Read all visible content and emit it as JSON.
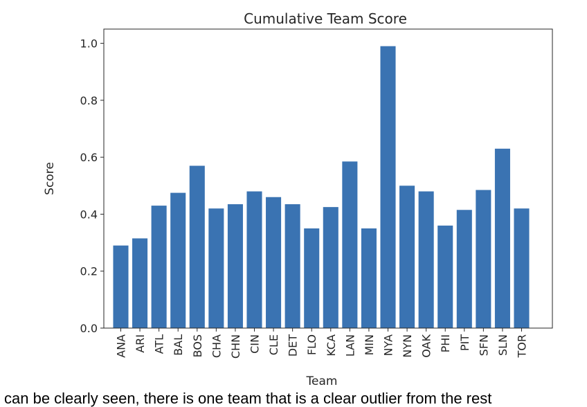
{
  "chart_data": {
    "type": "bar",
    "title": "Cumulative Team Score",
    "xlabel": "Team",
    "ylabel": "Score",
    "ylim": [
      0,
      1.05
    ],
    "yticks": [
      "0.0",
      "0.2",
      "0.4",
      "0.6",
      "0.8",
      "1.0"
    ],
    "ytick_values": [
      0,
      0.2,
      0.4,
      0.6,
      0.8,
      1.0
    ],
    "categories": [
      "ANA",
      "ARI",
      "ATL",
      "BAL",
      "BOS",
      "CHA",
      "CHN",
      "CIN",
      "CLE",
      "DET",
      "FLO",
      "KCA",
      "LAN",
      "MIN",
      "NYA",
      "NYN",
      "OAK",
      "PHI",
      "PIT",
      "SFN",
      "SLN",
      "TOR"
    ],
    "values": [
      0.29,
      0.315,
      0.43,
      0.475,
      0.57,
      0.42,
      0.435,
      0.48,
      0.46,
      0.435,
      0.35,
      0.425,
      0.585,
      0.35,
      0.99,
      0.5,
      0.48,
      0.36,
      0.415,
      0.485,
      0.63,
      0.42
    ],
    "bar_color": "#3a73b2",
    "grid": false,
    "legend": "none"
  },
  "caption": "can be clearly seen, there is one team that is a clear outlier from the rest"
}
